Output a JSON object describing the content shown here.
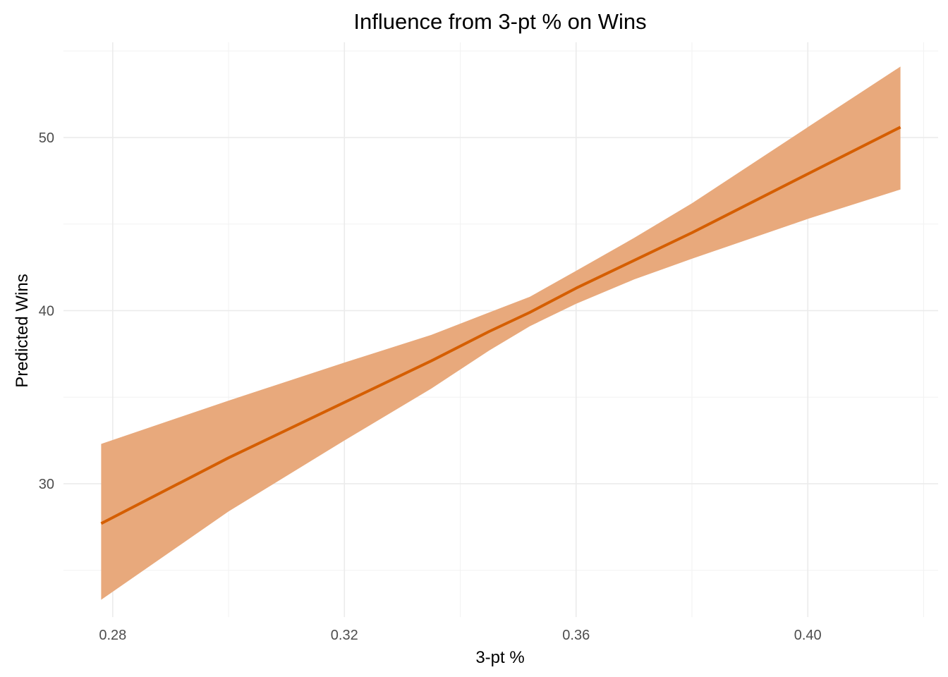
{
  "chart_data": {
    "type": "line",
    "title": "Influence from 3-pt % on Wins",
    "xlabel": "3-pt %",
    "ylabel": "Predicted Wins",
    "xlim": [
      0.2715,
      0.4225
    ],
    "ylim": [
      22.3,
      55.5
    ],
    "x_ticks": [
      {
        "value": 0.28,
        "label": "0.28"
      },
      {
        "value": 0.32,
        "label": "0.32"
      },
      {
        "value": 0.36,
        "label": "0.36"
      },
      {
        "value": 0.4,
        "label": "0.40"
      }
    ],
    "y_ticks": [
      {
        "value": 30,
        "label": "30"
      },
      {
        "value": 40,
        "label": "40"
      },
      {
        "value": 50,
        "label": "50"
      }
    ],
    "x_minor": [
      0.3,
      0.34,
      0.38,
      0.42
    ],
    "y_minor": [
      25,
      35,
      45,
      55
    ],
    "grid": true,
    "legend": "none",
    "line_color": "#D55E00",
    "band_color": "#E8A97C",
    "series": [
      {
        "x": [
          0.278,
          0.3,
          0.32,
          0.335,
          0.345,
          0.352,
          0.36,
          0.37,
          0.38,
          0.4,
          0.416
        ],
        "values": [
          27.7,
          31.5,
          34.7,
          37.1,
          38.8,
          39.9,
          41.3,
          42.9,
          44.5,
          47.9,
          50.6
        ],
        "lower": [
          23.3,
          28.4,
          32.5,
          35.5,
          37.7,
          39.1,
          40.4,
          41.8,
          43.0,
          45.3,
          47.0
        ],
        "upper": [
          32.3,
          34.8,
          37.0,
          38.6,
          39.9,
          40.8,
          42.3,
          44.2,
          46.2,
          50.6,
          54.1
        ]
      }
    ]
  }
}
